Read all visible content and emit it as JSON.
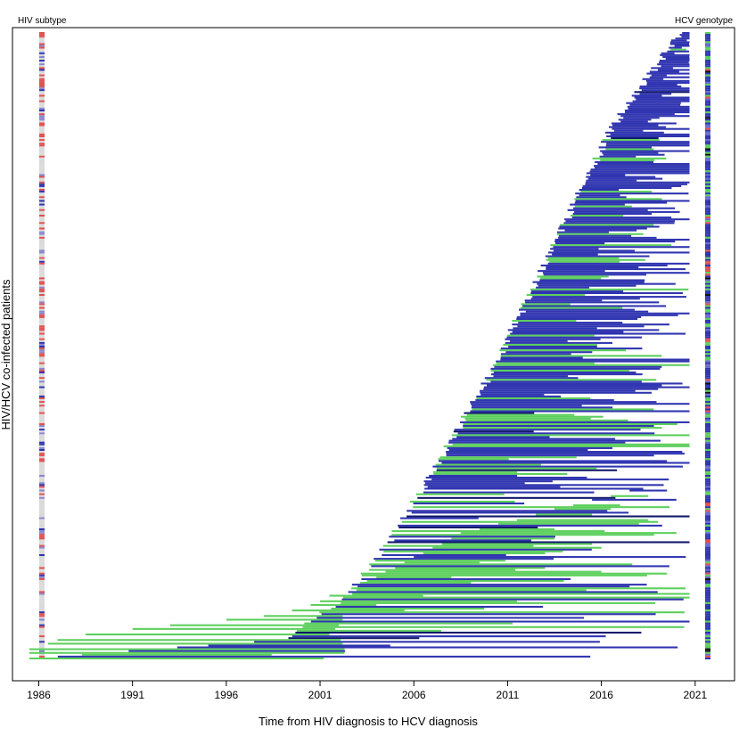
{
  "chart_data": {
    "type": "bar",
    "orientation": "horizontal-intervals",
    "xlabel": "Time from HIV diagnosis to HCV diagnosis",
    "ylabel": "HIV/HCV co-infected patients",
    "left_strip_label": "HIV subtype",
    "right_strip_label": "HCV genotype",
    "xlim": [
      1984.6,
      2023.1
    ],
    "x_ticks": [
      1986,
      1991,
      1996,
      2001,
      2006,
      2011,
      2016,
      2021
    ],
    "grid": false,
    "legend": "none",
    "row_count": 340,
    "segments": [
      {
        "start": 1985.5,
        "end": 2001.2,
        "color": "green"
      },
      {
        "start": 1985.5,
        "end": 2002.3,
        "color": "green"
      },
      {
        "start": 1985.5,
        "end": 2002.3,
        "color": "green"
      },
      {
        "start": 1986.5,
        "end": 2002.2,
        "color": "green"
      },
      {
        "start": 1987.0,
        "end": 2002.1,
        "color": "green"
      },
      {
        "start": 1988.5,
        "end": 2001.5,
        "color": "green"
      },
      {
        "start": 1991.0,
        "end": 2001.8,
        "color": "green"
      },
      {
        "start": 1993.0,
        "end": 2002.0,
        "color": "green"
      },
      {
        "start": 1996.0,
        "end": 2002.2,
        "color": "green"
      },
      {
        "start": 1998.0,
        "end": 2002.2,
        "color": "green"
      },
      {
        "start": 1999.5,
        "end": 2005.5,
        "color": "green"
      },
      {
        "start": 2000.5,
        "end": 2004.0,
        "color": "green"
      },
      {
        "start": 2001.0,
        "end": 2011.5,
        "color": "green"
      },
      {
        "start": 2001.5,
        "end": 2006.5,
        "color": "green"
      },
      {
        "start": 2002.5,
        "end": 2019.0,
        "color": "blue"
      },
      {
        "start": 2003.0,
        "end": 2017.5,
        "color": "blue"
      },
      {
        "start": 2003.5,
        "end": 2014.0,
        "color": "green"
      },
      {
        "start": 2004.0,
        "end": 2008.0,
        "color": "green"
      },
      {
        "start": 2004.5,
        "end": 2016.0,
        "color": "green"
      },
      {
        "start": 2005.0,
        "end": 2013.0,
        "color": "green"
      },
      {
        "start": 2005.5,
        "end": 2009.5,
        "color": "green"
      },
      {
        "start": 2006.0,
        "end": 2020.5,
        "color": "blue"
      },
      {
        "start": 2006.5,
        "end": 2013.0,
        "color": "green"
      },
      {
        "start": 2007.0,
        "end": 2016.0,
        "color": "green"
      },
      {
        "start": 2007.5,
        "end": 2015.5,
        "color": "green"
      },
      {
        "start": 2008.0,
        "end": 2013.5,
        "color": "green"
      },
      {
        "start": 2008.5,
        "end": 2020.0,
        "color": "green"
      },
      {
        "start": 2009.5,
        "end": 2013.5,
        "color": "green"
      },
      {
        "start": 2010.5,
        "end": 2018.0,
        "color": "green"
      },
      {
        "start": 2011.5,
        "end": 2018.5,
        "color": "green"
      },
      {
        "start": 2012.5,
        "end": 2015.5,
        "color": "green"
      },
      {
        "start": 2013.5,
        "end": 2016.5,
        "color": "green"
      },
      {
        "start": 2014.5,
        "end": 2017.0,
        "color": "green"
      },
      {
        "start": 2015.5,
        "end": 2020.0,
        "color": "blue"
      },
      {
        "start": 2016.5,
        "end": 2018.5,
        "color": "green"
      },
      {
        "start": 2017.5,
        "end": 2019.5,
        "color": "blue"
      }
    ]
  }
}
